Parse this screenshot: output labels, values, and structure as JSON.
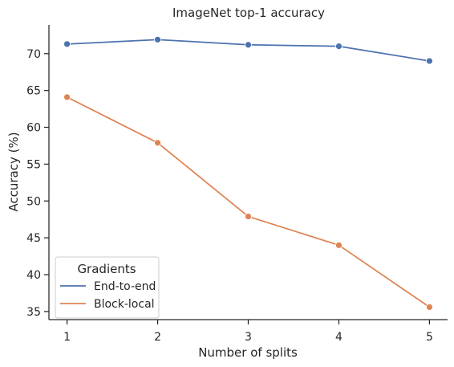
{
  "chart_data": {
    "type": "line",
    "title": "ImageNet top-1 accuracy",
    "xlabel": "Number of splits",
    "ylabel": "Accuracy (%)",
    "x": [
      1,
      2,
      3,
      4,
      5
    ],
    "xticks": [
      "1",
      "2",
      "3",
      "4",
      "5"
    ],
    "yticks": [
      "35",
      "40",
      "45",
      "50",
      "55",
      "60",
      "65",
      "70"
    ],
    "xlim": [
      0.8,
      5.2
    ],
    "ylim": [
      33.9,
      73.9
    ],
    "grid": false,
    "legend_title": "Gradients",
    "legend_position": "bottom-left",
    "series": [
      {
        "name": "End-to-end",
        "color": "#4c72b0",
        "values": [
          71.3,
          71.9,
          71.2,
          71.0,
          69.0
        ]
      },
      {
        "name": "Block-local",
        "color": "#dd8452",
        "values": [
          64.1,
          57.9,
          47.9,
          44.0,
          35.6
        ]
      }
    ]
  }
}
